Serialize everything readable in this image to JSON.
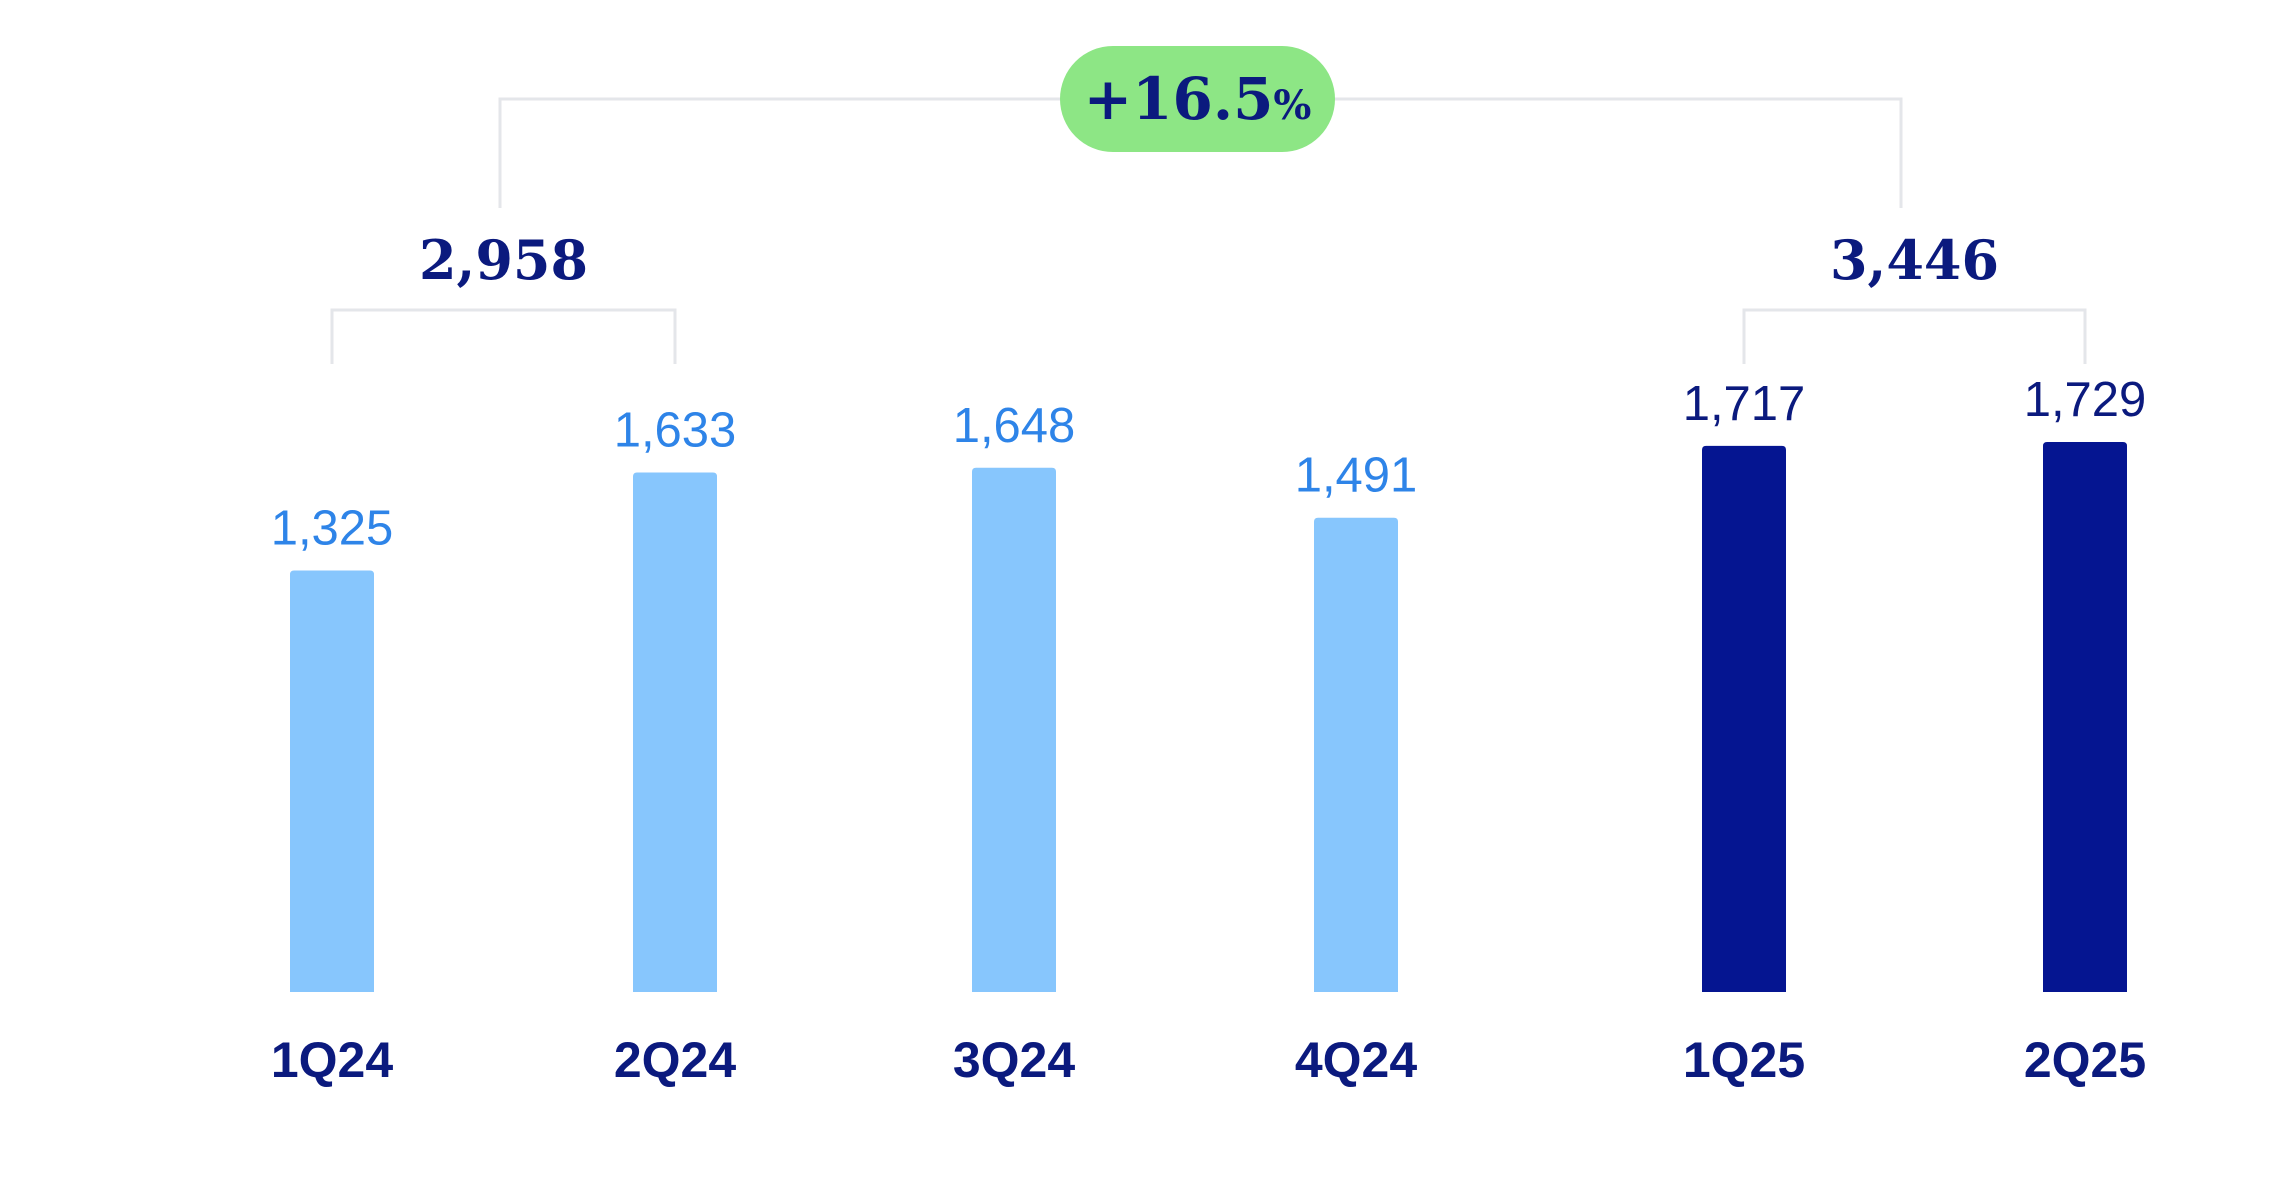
{
  "chart_data": {
    "type": "bar",
    "categories": [
      "1Q24",
      "2Q24",
      "3Q24",
      "4Q24",
      "1Q25",
      "2Q25"
    ],
    "values": [
      1325,
      1633,
      1648,
      1491,
      1717,
      1729
    ],
    "value_labels": [
      "1,325",
      "1,633",
      "1,648",
      "1,491",
      "1,717",
      "1,729"
    ],
    "ylim": [
      0,
      1729
    ],
    "grid": false,
    "legend": "none",
    "groups": [
      {
        "categories": [
          "1Q24",
          "2Q24"
        ],
        "total_label": "2,958"
      },
      {
        "categories": [
          "1Q25",
          "2Q25"
        ],
        "total_label": "3,446"
      }
    ],
    "change": {
      "value": "+16.5",
      "unit": "%"
    },
    "colors": {
      "bar_2024": "#87c6fd",
      "bar_2025": "#051591",
      "label_2024": "#2e84e8",
      "label_2025": "#0b1a7e",
      "category_text": "#0b1a7e",
      "total_text": "#0b1a7e",
      "bracket": "#e4e6ea",
      "badge_fill": "#8de685",
      "badge_text": "#0b1a7e"
    }
  }
}
